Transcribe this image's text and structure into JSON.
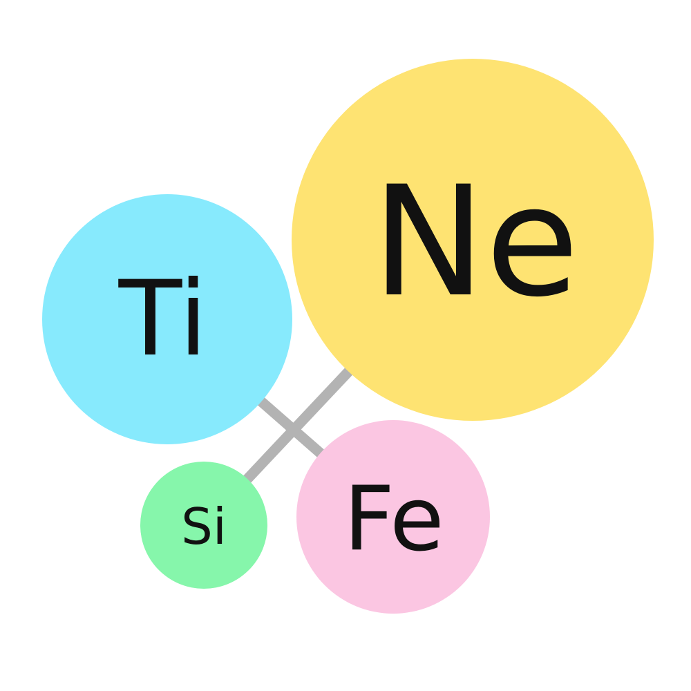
{
  "atoms": {
    "ne": {
      "symbol": "Ne",
      "color": "#fee372"
    },
    "ti": {
      "symbol": "Ti",
      "color": "#87eafd"
    },
    "fe": {
      "symbol": "Fe",
      "color": "#fbc6e2"
    },
    "si": {
      "symbol": "Si",
      "color": "#86f6ab"
    }
  },
  "bonds": [
    {
      "from": "ti",
      "to": "fe"
    },
    {
      "from": "si",
      "to": "ne"
    }
  ],
  "colors": {
    "bond": "#b3b3b3",
    "label": "#111111",
    "background": "#ffffff"
  }
}
